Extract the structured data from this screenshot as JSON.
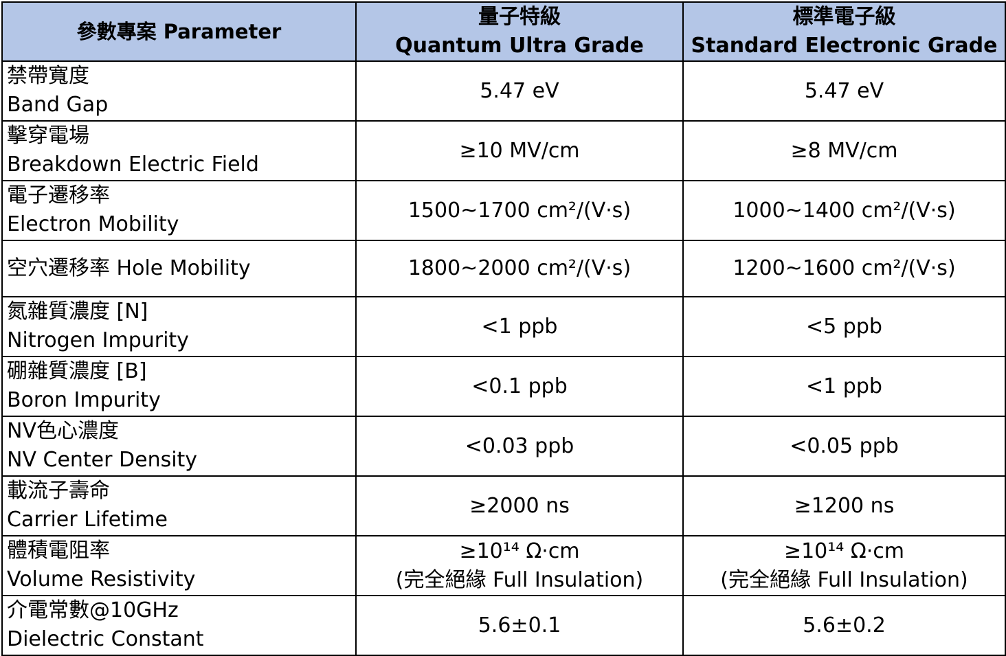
{
  "header": {
    "param": "參數專案 Parameter",
    "quantum_zh": "量子特級",
    "quantum_en": "Quantum Ultra Grade",
    "standard_zh": "標準電子級",
    "standard_en": "Standard Electronic Grade"
  },
  "rows": [
    {
      "param_lines": [
        "禁帶寬度",
        "Band Gap"
      ],
      "quantum_lines": [
        "5.47 eV"
      ],
      "standard_lines": [
        "5.47 eV"
      ]
    },
    {
      "param_lines": [
        "擊穿電場",
        "Breakdown Electric Field"
      ],
      "quantum_lines": [
        "≥10 MV/cm"
      ],
      "standard_lines": [
        "≥8 MV/cm"
      ]
    },
    {
      "param_lines": [
        "電子遷移率",
        "Electron Mobility"
      ],
      "quantum_lines": [
        "1500~1700 cm²/(V·s)"
      ],
      "standard_lines": [
        "1000~1400 cm²/(V·s)"
      ]
    },
    {
      "param_lines": [
        "空穴遷移率 Hole Mobility"
      ],
      "quantum_lines": [
        "1800~2000 cm²/(V·s)"
      ],
      "standard_lines": [
        "1200~1600 cm²/(V·s)"
      ]
    },
    {
      "param_lines": [
        "氮雜質濃度 [N]",
        "Nitrogen Impurity"
      ],
      "quantum_lines": [
        "<1 ppb"
      ],
      "standard_lines": [
        "<5 ppb"
      ]
    },
    {
      "param_lines": [
        "硼雜質濃度 [B]",
        "Boron Impurity"
      ],
      "quantum_lines": [
        "<0.1 ppb"
      ],
      "standard_lines": [
        "<1 ppb"
      ]
    },
    {
      "param_lines": [
        "NV色心濃度",
        "NV Center Density"
      ],
      "quantum_lines": [
        "<0.03 ppb"
      ],
      "standard_lines": [
        "<0.05 ppb"
      ]
    },
    {
      "param_lines": [
        "載流子壽命",
        "Carrier Lifetime"
      ],
      "quantum_lines": [
        "≥2000 ns"
      ],
      "standard_lines": [
        "≥1200 ns"
      ]
    },
    {
      "param_lines": [
        "體積電阻率",
        "Volume Resistivity"
      ],
      "quantum_lines": [
        "≥10¹⁴ Ω·cm",
        "(完全絕緣 Full Insulation)"
      ],
      "standard_lines": [
        "≥10¹⁴ Ω·cm",
        "(完全絕緣 Full Insulation)"
      ]
    },
    {
      "param_lines": [
        "介電常數@10GHz",
        "Dielectric Constant"
      ],
      "quantum_lines": [
        "5.6±0.1"
      ],
      "standard_lines": [
        "5.6±0.2"
      ]
    }
  ]
}
